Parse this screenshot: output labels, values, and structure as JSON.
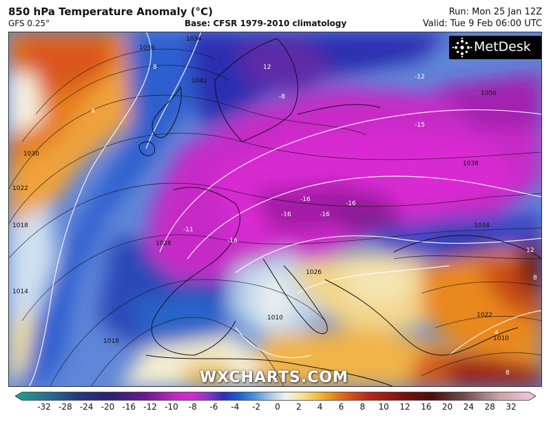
{
  "header": {
    "title": "850 hPa Temperature Anomaly (°C)",
    "model": "GFS 0.25°",
    "base": "Base: CFSR 1979-2010 climatology",
    "run": "Run: Mon 25 Jan 12Z",
    "valid": "Valid: Tue 9 Feb 06:00 UTC"
  },
  "logo": {
    "text": "MetDesk",
    "icon": "metdesk-star-icon"
  },
  "watermark": "WXCHARTS.COM",
  "isobar_labels": [
    "1036",
    "1034",
    "1042",
    "1030",
    "1022",
    "1018",
    "1026",
    "1014",
    "1010",
    "1018",
    "1050",
    "1038",
    "1034",
    "1026",
    "1022",
    "1010"
  ],
  "anomaly_labels": [
    "4",
    "8",
    "12",
    "-8",
    "-12",
    "-15",
    "-16",
    "-16",
    "-16",
    "-16",
    "-16",
    "-11",
    "12",
    "8",
    "4",
    "8"
  ],
  "colorbar": {
    "ticks": [
      "-32",
      "-28",
      "-24",
      "-20",
      "-16",
      "-12",
      "-10",
      "-8",
      "-6",
      "-4",
      "-2",
      "0",
      "2",
      "4",
      "6",
      "8",
      "10",
      "12",
      "16",
      "20",
      "24",
      "28",
      "32"
    ],
    "colors": [
      "#1fa38c",
      "#2b6f8f",
      "#233a7a",
      "#2b2170",
      "#6b1a8f",
      "#a61fb0",
      "#d02bcf",
      "#8c34c8",
      "#2d2fb5",
      "#1a5fd0",
      "#4f94d6",
      "#a7c9e6",
      "#f2f2f2",
      "#f3e3a0",
      "#f0bf42",
      "#e68a1a",
      "#d4561a",
      "#b8261a",
      "#7e1410",
      "#4a0c0c",
      "#6e4b4b",
      "#c7a3a3",
      "#f3c8e6"
    ]
  }
}
